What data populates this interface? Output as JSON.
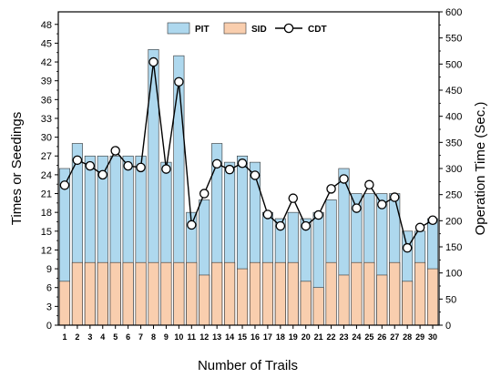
{
  "chart_data": {
    "type": "bar",
    "xlabel": "Number of Trails",
    "ylabel_left": "Times or Seedings",
    "ylabel_right": "Operation Time (Sec.)",
    "categories": [
      "1",
      "2",
      "3",
      "4",
      "5",
      "6",
      "7",
      "8",
      "9",
      "10",
      "11",
      "12",
      "13",
      "14",
      "15",
      "16",
      "17",
      "18",
      "19",
      "20",
      "21",
      "22",
      "23",
      "24",
      "25",
      "26",
      "27",
      "28",
      "29",
      "30"
    ],
    "y_left_ticks": [
      0,
      3,
      6,
      9,
      12,
      15,
      18,
      21,
      24,
      27,
      30,
      33,
      36,
      39,
      42,
      45,
      48
    ],
    "y_left_lim": [
      0,
      50
    ],
    "y_right_ticks": [
      0,
      50,
      100,
      150,
      200,
      250,
      300,
      350,
      400,
      450,
      500,
      550,
      600
    ],
    "y_right_lim": [
      0,
      600
    ],
    "legend_position": "top-center",
    "series": [
      {
        "name": "PIT",
        "kind": "stacked-bar-top",
        "color": "#AED8EE",
        "values": [
          25,
          29,
          27,
          27,
          27,
          27,
          27,
          44,
          26,
          43,
          18,
          20,
          29,
          26,
          27,
          26,
          18,
          17,
          18,
          17,
          18,
          20,
          25,
          21,
          21,
          21,
          21,
          15,
          15,
          17
        ]
      },
      {
        "name": "SID",
        "kind": "stacked-bar-bottom",
        "color": "#F9CEAE",
        "values": [
          7,
          10,
          10,
          10,
          10,
          10,
          10,
          10,
          10,
          10,
          10,
          8,
          10,
          10,
          9,
          10,
          10,
          10,
          10,
          7,
          6,
          10,
          8,
          10,
          10,
          8,
          10,
          7,
          10,
          9
        ]
      },
      {
        "name": "CDT",
        "kind": "line-markers",
        "axis": "right",
        "color": "#000000",
        "values": [
          268,
          316,
          305,
          288,
          334,
          305,
          302,
          504,
          299,
          466,
          192,
          252,
          309,
          298,
          310,
          287,
          212,
          190,
          243,
          190,
          211,
          261,
          280,
          224,
          269,
          231,
          245,
          148,
          187,
          201
        ]
      }
    ]
  }
}
